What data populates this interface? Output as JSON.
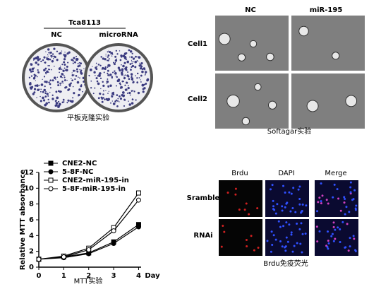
{
  "panels": {
    "clone": {
      "group_label": "Tca8113",
      "columns": [
        "NC",
        "microRNA"
      ],
      "caption": "平板克隆实验"
    },
    "softagar": {
      "columns": [
        "NC",
        "miR-195"
      ],
      "rows": [
        "Cell1",
        "Cell2"
      ],
      "caption": "Softagar实验"
    },
    "brdu": {
      "columns": [
        "Brdu",
        "DAPI",
        "Merge"
      ],
      "rows": [
        "Sramble",
        "RNAi"
      ],
      "caption": "Brdu免疫荧光"
    }
  },
  "chart_data": {
    "type": "line",
    "y_label": "Relative MTT absorbance",
    "x_label": "Day",
    "caption": "MTT实验",
    "x": [
      0,
      1,
      2,
      3,
      4
    ],
    "xlim": [
      0,
      4.1
    ],
    "xticks": [
      0,
      1,
      2,
      3,
      4
    ],
    "ylim": [
      0,
      12
    ],
    "yticks": [
      0,
      2,
      4,
      6,
      8,
      10,
      12
    ],
    "series": [
      {
        "name": "CNE2-NC",
        "color": "#000000",
        "marker": "square",
        "filled": true,
        "values": [
          1,
          1.3,
          1.8,
          3.2,
          5.4
        ]
      },
      {
        "name": "5-8F-NC",
        "color": "#000000",
        "marker": "circle",
        "filled": true,
        "values": [
          1,
          1.2,
          1.7,
          3.0,
          5.1
        ]
      },
      {
        "name": "CNE2-miR-195-in",
        "color": "#000000",
        "marker": "square",
        "filled": false,
        "values": [
          1,
          1.4,
          2.4,
          5.0,
          9.4
        ]
      },
      {
        "name": "5-8F-miR-195-in",
        "color": "#000000",
        "marker": "circle",
        "filled": false,
        "values": [
          1,
          1.3,
          2.2,
          4.6,
          8.5
        ]
      }
    ]
  }
}
